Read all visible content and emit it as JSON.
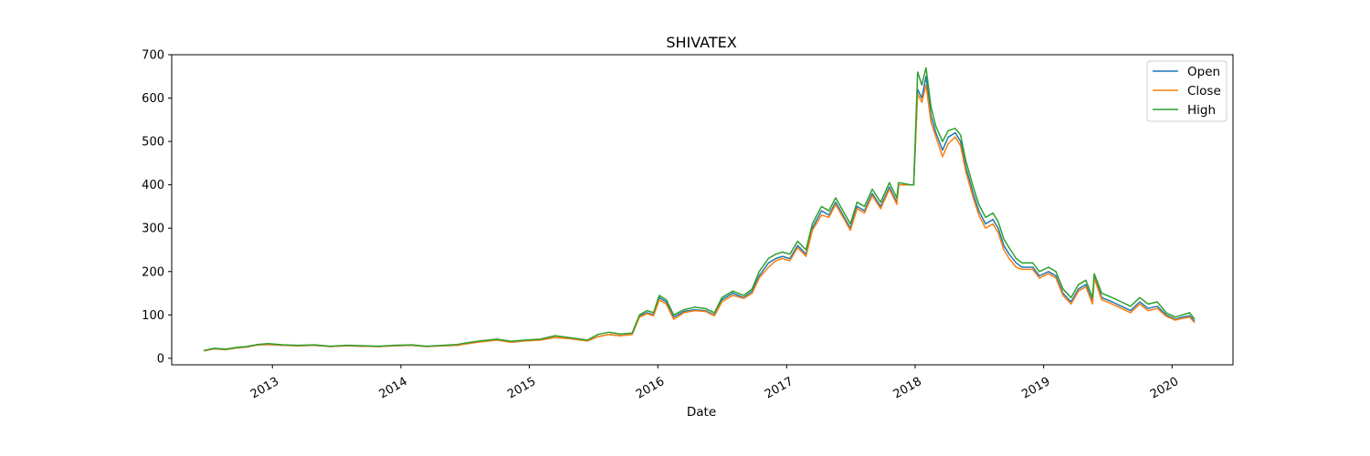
{
  "chart_data": {
    "type": "line",
    "title": "SHIVATEX",
    "xlabel": "Date",
    "ylabel": "",
    "xlim": [
      "2012-03-21",
      "2020-06-22"
    ],
    "ylim": [
      -15,
      700
    ],
    "yticks": [
      0,
      100,
      200,
      300,
      400,
      500,
      600,
      700
    ],
    "xticks": [
      {
        "date": "2013-01-01",
        "label": "2013"
      },
      {
        "date": "2014-01-01",
        "label": "2014"
      },
      {
        "date": "2015-01-01",
        "label": "2015"
      },
      {
        "date": "2016-01-01",
        "label": "2016"
      },
      {
        "date": "2017-01-01",
        "label": "2017"
      },
      {
        "date": "2018-01-01",
        "label": "2018"
      },
      {
        "date": "2019-01-01",
        "label": "2019"
      },
      {
        "date": "2020-01-01",
        "label": "2020"
      }
    ],
    "grid": false,
    "legend_position": "top-right",
    "x": [
      "2012-06-20",
      "2012-07-20",
      "2012-08-20",
      "2012-09-20",
      "2012-10-20",
      "2012-11-20",
      "2012-12-20",
      "2013-02-01",
      "2013-03-15",
      "2013-05-01",
      "2013-06-15",
      "2013-08-01",
      "2013-09-15",
      "2013-11-01",
      "2013-12-15",
      "2014-02-01",
      "2014-03-15",
      "2014-05-01",
      "2014-06-10",
      "2014-07-01",
      "2014-08-15",
      "2014-10-01",
      "2014-11-10",
      "2014-12-20",
      "2015-02-01",
      "2015-03-15",
      "2015-05-01",
      "2015-06-15",
      "2015-07-15",
      "2015-08-15",
      "2015-09-15",
      "2015-10-20",
      "2015-11-10",
      "2015-12-01",
      "2015-12-20",
      "2016-01-05",
      "2016-01-25",
      "2016-02-15",
      "2016-03-15",
      "2016-04-15",
      "2016-05-15",
      "2016-06-10",
      "2016-07-01",
      "2016-08-01",
      "2016-09-01",
      "2016-09-25",
      "2016-10-15",
      "2016-11-10",
      "2016-12-01",
      "2016-12-20",
      "2017-01-10",
      "2017-02-01",
      "2017-02-25",
      "2017-03-15",
      "2017-04-10",
      "2017-05-01",
      "2017-05-20",
      "2017-06-10",
      "2017-07-01",
      "2017-07-20",
      "2017-08-10",
      "2017-09-01",
      "2017-09-25",
      "2017-10-20",
      "2017-11-10",
      "2017-11-15",
      "2017-12-20",
      "2017-12-28",
      "2018-01-08",
      "2018-01-20",
      "2018-02-01",
      "2018-02-15",
      "2018-03-01",
      "2018-03-20",
      "2018-04-05",
      "2018-04-25",
      "2018-05-10",
      "2018-05-25",
      "2018-06-15",
      "2018-07-01",
      "2018-07-20",
      "2018-08-10",
      "2018-08-25",
      "2018-09-10",
      "2018-09-25",
      "2018-10-15",
      "2018-11-01",
      "2018-12-01",
      "2018-12-20",
      "2019-01-15",
      "2019-02-05",
      "2019-02-25",
      "2019-03-20",
      "2019-04-10",
      "2019-05-01",
      "2019-05-20",
      "2019-05-25",
      "2019-06-15",
      "2019-07-15",
      "2019-08-10",
      "2019-09-05",
      "2019-10-01",
      "2019-10-25",
      "2019-11-20",
      "2019-12-15",
      "2020-01-10",
      "2020-01-30",
      "2020-02-20",
      "2020-03-05"
    ],
    "series": [
      {
        "name": "Open",
        "color": "#1f77b4",
        "values": [
          17,
          22,
          20,
          24,
          26,
          31,
          32,
          30,
          29,
          30,
          27,
          29,
          28,
          27,
          29,
          30,
          27,
          29,
          30,
          33,
          38,
          42,
          37,
          40,
          42,
          48,
          45,
          40,
          50,
          55,
          52,
          55,
          97,
          105,
          100,
          140,
          130,
          95,
          108,
          112,
          110,
          100,
          135,
          150,
          140,
          155,
          190,
          220,
          230,
          235,
          230,
          260,
          240,
          300,
          340,
          330,
          360,
          330,
          300,
          350,
          340,
          380,
          350,
          395,
          360,
          400,
          400,
          400,
          620,
          600,
          650,
          560,
          520,
          480,
          510,
          520,
          500,
          440,
          380,
          340,
          310,
          320,
          300,
          260,
          240,
          220,
          210,
          210,
          190,
          200,
          190,
          150,
          130,
          160,
          170,
          130,
          190,
          140,
          130,
          120,
          110,
          130,
          115,
          120,
          100,
          90,
          95,
          98,
          85
        ]
      },
      {
        "name": "Close",
        "color": "#ff7f0e",
        "values": [
          17,
          22,
          20,
          24,
          26,
          31,
          32,
          30,
          29,
          30,
          27,
          29,
          28,
          27,
          29,
          30,
          27,
          29,
          30,
          33,
          38,
          42,
          37,
          40,
          42,
          48,
          45,
          40,
          50,
          55,
          52,
          55,
          95,
          103,
          98,
          135,
          125,
          90,
          105,
          110,
          108,
          98,
          130,
          145,
          138,
          150,
          185,
          210,
          225,
          230,
          225,
          255,
          235,
          295,
          330,
          325,
          355,
          325,
          295,
          345,
          335,
          375,
          345,
          390,
          355,
          400,
          400,
          400,
          610,
          590,
          630,
          545,
          510,
          465,
          495,
          510,
          490,
          430,
          370,
          330,
          300,
          310,
          290,
          250,
          230,
          210,
          205,
          205,
          185,
          195,
          185,
          145,
          125,
          155,
          165,
          125,
          185,
          135,
          125,
          115,
          105,
          125,
          110,
          115,
          97,
          88,
          92,
          95,
          82
        ]
      },
      {
        "name": "High",
        "color": "#2ca02c",
        "values": [
          18,
          23,
          21,
          25,
          27,
          32,
          34,
          31,
          30,
          31,
          28,
          30,
          29,
          28,
          30,
          31,
          28,
          30,
          32,
          35,
          40,
          44,
          39,
          42,
          44,
          52,
          47,
          42,
          55,
          60,
          56,
          58,
          100,
          110,
          105,
          145,
          135,
          100,
          112,
          118,
          115,
          105,
          140,
          155,
          145,
          160,
          200,
          230,
          240,
          245,
          240,
          270,
          250,
          310,
          350,
          340,
          370,
          340,
          310,
          360,
          350,
          390,
          360,
          405,
          370,
          405,
          400,
          400,
          660,
          630,
          670,
          580,
          535,
          500,
          525,
          530,
          515,
          455,
          395,
          355,
          325,
          335,
          315,
          275,
          255,
          230,
          220,
          220,
          200,
          210,
          200,
          160,
          140,
          170,
          180,
          140,
          195,
          150,
          140,
          130,
          120,
          140,
          125,
          130,
          105,
          95,
          100,
          105,
          90
        ]
      }
    ]
  }
}
